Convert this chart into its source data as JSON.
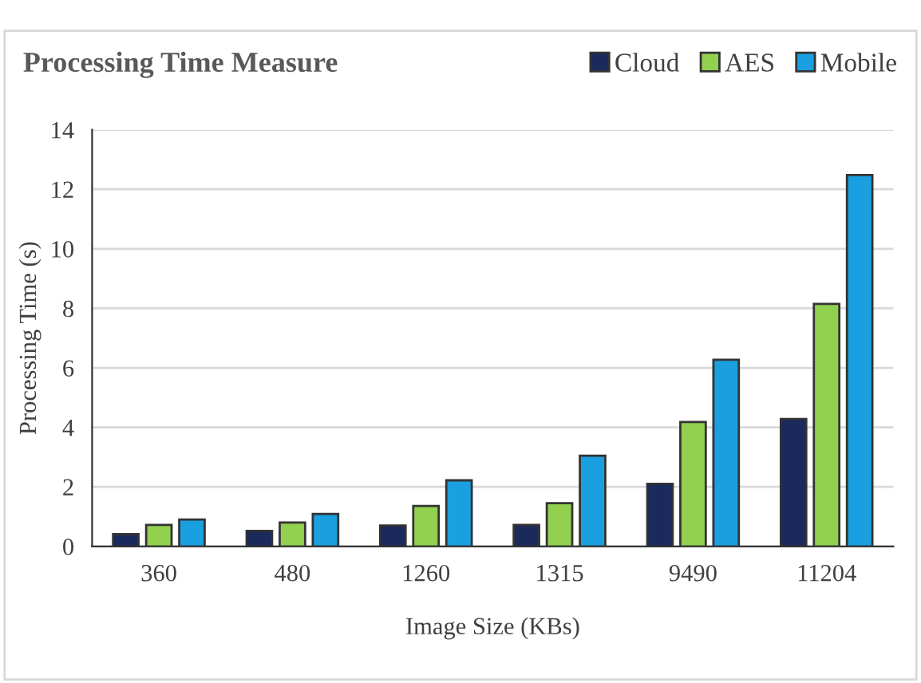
{
  "chart_data": {
    "type": "bar",
    "title": "Processing Time Measure",
    "xlabel": "Image Size (KBs)",
    "ylabel": "Processing Time (s)",
    "categories": [
      "360",
      "480",
      "1260",
      "1315",
      "9490",
      "11204"
    ],
    "series": [
      {
        "name": "Cloud",
        "color": "#1b2a5c",
        "values": [
          0.41,
          0.52,
          0.7,
          0.72,
          2.1,
          4.28
        ]
      },
      {
        "name": "AES",
        "color": "#92d050",
        "values": [
          0.72,
          0.8,
          1.36,
          1.45,
          4.18,
          8.15
        ]
      },
      {
        "name": "Mobile",
        "color": "#1a9fe0",
        "values": [
          0.9,
          1.09,
          2.22,
          3.05,
          6.27,
          12.48
        ]
      }
    ],
    "ylim": [
      0,
      14
    ],
    "yticks": [
      0,
      2,
      4,
      6,
      8,
      10,
      12,
      14
    ],
    "grid": "y",
    "legend": "top right"
  }
}
